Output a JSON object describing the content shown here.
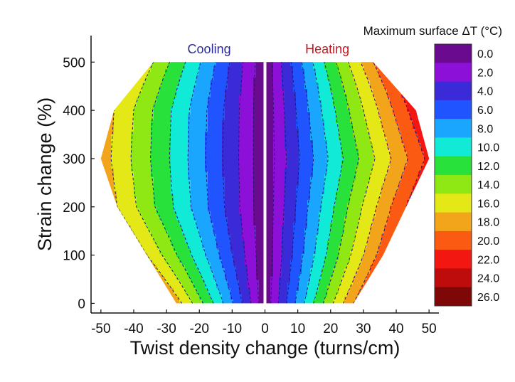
{
  "chart_data": {
    "type": "heatmap",
    "subtype": "filled-contour",
    "xlabel": "Twist density change (turns/cm)",
    "ylabel": "Strain change (%)",
    "xlim": [
      -53,
      53
    ],
    "ylim": [
      -20,
      555
    ],
    "xticks": [
      -50,
      -40,
      -30,
      -20,
      -10,
      0,
      10,
      20,
      30,
      40,
      50
    ],
    "yticks": [
      0,
      100,
      200,
      300,
      400,
      500
    ],
    "annotations": [
      {
        "text": "Cooling",
        "color": "#2b2b8f"
      },
      {
        "text": "Heating",
        "color": "#c4161c"
      }
    ],
    "colorbar": {
      "title": "Maximum surface ΔT (°C)",
      "levels": [
        "0.0",
        "2.0",
        "4.0",
        "6.0",
        "8.0",
        "10.0",
        "12.0",
        "14.0",
        "16.0",
        "18.0",
        "20.0",
        "22.0",
        "24.0",
        "26.0"
      ],
      "colors": [
        "#6a0a8e",
        "#8c10d8",
        "#3b2ad8",
        "#1f54ff",
        "#1aa6ff",
        "#12ead8",
        "#28e13a",
        "#8fe814",
        "#e4e816",
        "#f2a51a",
        "#fb5a12",
        "#f21710",
        "#be0c0c",
        "#7e0808"
      ]
    },
    "contour_model": {
      "description": "Maximum surface temperature change vs twist density change and strain change; ΔT is ~0 near zero twist and rises toward the domain edges, peaking near 300% strain.",
      "domain_boundary": {
        "strain": [
          0,
          100,
          200,
          300,
          400,
          500
        ],
        "min_twist": [
          -27,
          -36,
          -45,
          -50,
          -46,
          -34
        ],
        "max_twist": [
          27,
          36,
          43,
          50,
          46,
          33
        ]
      },
      "max_deltaT_at_edge": {
        "cooling": [
          19,
          18,
          18,
          19,
          18,
          16
        ],
        "heating": [
          20,
          21,
          22,
          22.5,
          23,
          20
        ]
      }
    }
  }
}
